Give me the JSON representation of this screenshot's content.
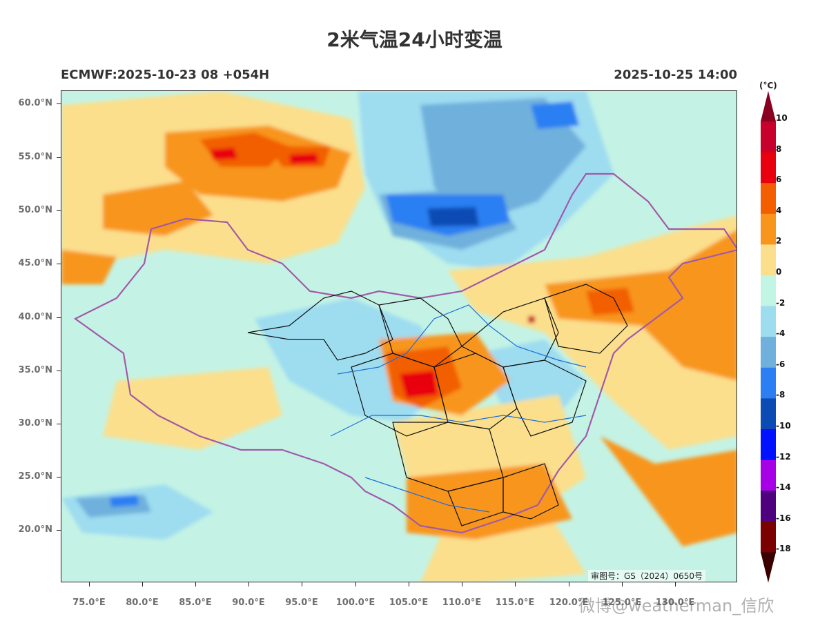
{
  "title": "2米气温24小时变温",
  "subtitle_left": "ECMWF:2025-10-23 08 +054H",
  "subtitle_right": "2025-10-25 14:00",
  "y_axis": {
    "labels": [
      "60.0°N",
      "55.0°N",
      "50.0°N",
      "45.0°N",
      "40.0°N",
      "35.0°N",
      "30.0°N",
      "25.0°N",
      "20.0°N"
    ]
  },
  "x_axis": {
    "labels": [
      "75.0°E",
      "80.0°E",
      "85.0°E",
      "90.0°E",
      "95.0°E",
      "100.0°E",
      "105.0°E",
      "110.0°E",
      "115.0°E",
      "120.0°E",
      "125.0°E",
      "130.0°E"
    ]
  },
  "colorbar": {
    "unit": "(°C)",
    "labels": [
      "10",
      "8",
      "6",
      "4",
      "2",
      "0",
      "-2",
      "-4",
      "-6",
      "-8",
      "-10",
      "-12",
      "-14",
      "-16",
      "-18"
    ],
    "colors": [
      "#c8002c",
      "#e8000e",
      "#f25e00",
      "#f8951a",
      "#fbdf8c",
      "#c2f5e4",
      "#9edcf0",
      "#6fb0dc",
      "#2b7ff2",
      "#0b4bb4",
      "#0011ff",
      "#a700e6",
      "#4f007f",
      "#7b0000"
    ],
    "top_arrow_color": "#8a0020",
    "bottom_arrow_color": "#3a0000"
  },
  "legend": {
    "approval_no": "审图号：GS（2024）0650号"
  },
  "watermark": "微博@weatherman_信欣",
  "colors": {
    "boundary_national": "#a259a8",
    "boundary_province": "#111111",
    "rivers": "#1f6fd6"
  }
}
